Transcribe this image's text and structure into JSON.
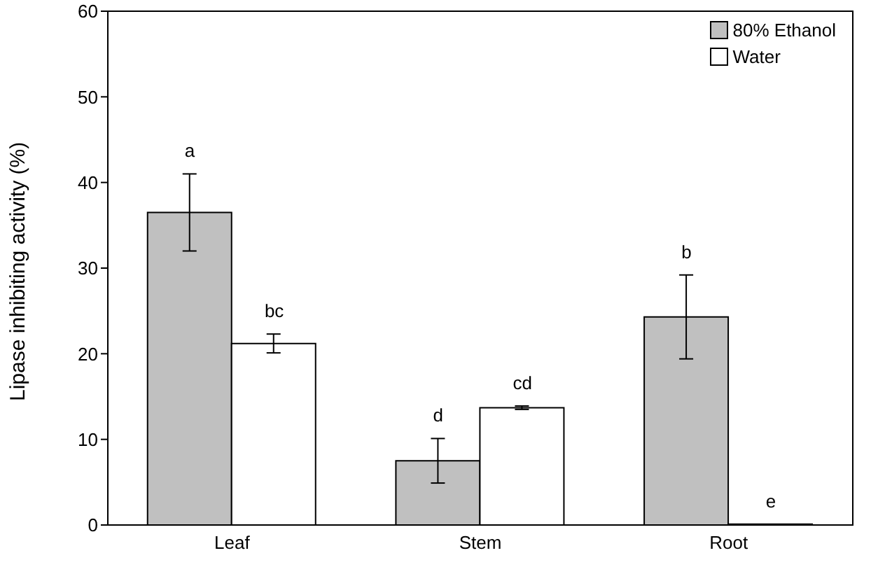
{
  "chart_data": {
    "type": "bar",
    "ylabel": "Lipase inhibiting activity (%)",
    "categories": [
      "Leaf",
      "Stem",
      "Root"
    ],
    "series": [
      {
        "name": "80% Ethanol",
        "color": "#c0c0c0",
        "values": [
          36.5,
          7.5,
          24.3
        ],
        "errors": [
          4.5,
          2.6,
          4.9
        ],
        "value_labels": [
          "a",
          "d",
          "b"
        ]
      },
      {
        "name": "Water",
        "color": "#ffffff",
        "values": [
          21.2,
          13.7,
          0.1
        ],
        "errors": [
          1.1,
          0.2,
          null
        ],
        "value_labels": [
          "bc",
          "cd",
          "e"
        ]
      }
    ],
    "ylim": [
      0,
      60
    ],
    "yticks": [
      0,
      10,
      20,
      30,
      40,
      50,
      60
    ],
    "legend": "top right"
  }
}
